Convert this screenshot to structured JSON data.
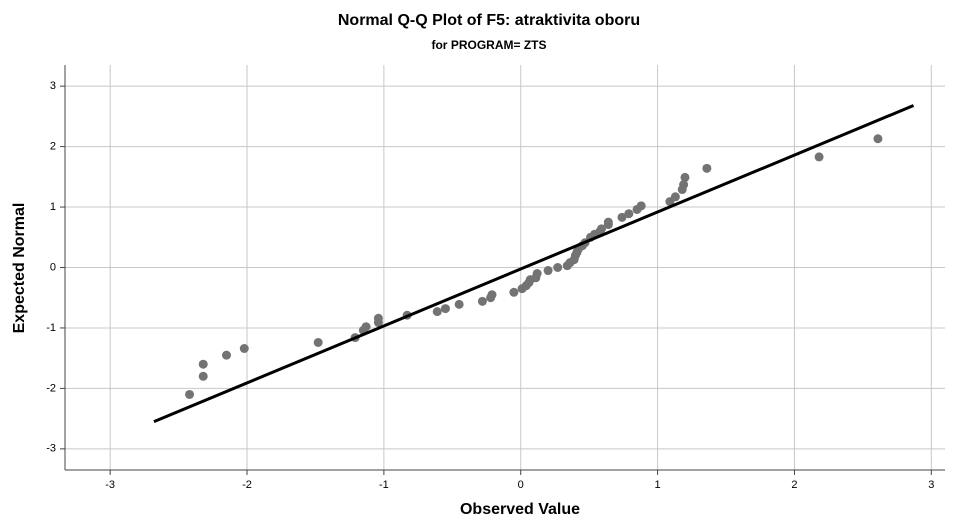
{
  "chart_data": {
    "type": "scatter",
    "title": "Normal Q-Q Plot of F5: atraktivita oboru",
    "subtitle": "for PROGRAM= ZTS",
    "x_label": "Observed Value",
    "y_label": "Expected Normal",
    "x": [
      -2.42,
      -2.32,
      -2.32,
      -2.15,
      -2.02,
      -1.48,
      -1.21,
      -1.15,
      -1.13,
      -1.04,
      -1.04,
      -0.83,
      -0.61,
      -0.55,
      -0.45,
      -0.28,
      -0.22,
      -0.21,
      -0.05,
      0.01,
      0.04,
      0.06,
      0.07,
      0.11,
      0.12,
      0.2,
      0.27,
      0.34,
      0.36,
      0.39,
      0.4,
      0.41,
      0.42,
      0.45,
      0.47,
      0.51,
      0.54,
      0.58,
      0.59,
      0.64,
      0.64,
      0.74,
      0.79,
      0.85,
      0.88,
      1.09,
      1.13,
      1.18,
      1.19,
      1.2,
      1.36,
      2.18,
      2.61
    ],
    "values": [
      -2.1,
      -1.6,
      -1.8,
      -1.45,
      -1.34,
      -1.24,
      -1.16,
      -1.04,
      -0.98,
      -0.91,
      -0.84,
      -0.79,
      -0.73,
      -0.68,
      -0.61,
      -0.56,
      -0.5,
      -0.45,
      -0.41,
      -0.35,
      -0.3,
      -0.25,
      -0.2,
      -0.17,
      -0.1,
      -0.05,
      0.0,
      0.03,
      0.08,
      0.13,
      0.2,
      0.25,
      0.3,
      0.36,
      0.41,
      0.5,
      0.55,
      0.6,
      0.64,
      0.71,
      0.75,
      0.83,
      0.89,
      0.96,
      1.02,
      1.09,
      1.17,
      1.29,
      1.37,
      1.49,
      1.64,
      1.83,
      2.13
    ],
    "color": "#737373",
    "reference_line": {
      "x": [
        -2.68,
        2.87
      ],
      "y": [
        -2.55,
        2.68
      ],
      "color": "#000000"
    },
    "xlim": [
      -3.33,
      3.1
    ],
    "ylim": [
      -3.35,
      3.35
    ],
    "xticks": [
      -3,
      -2,
      -1,
      0,
      1,
      2,
      3
    ],
    "yticks": [
      -3,
      -2,
      -1,
      0,
      1,
      2,
      3
    ],
    "grid": true
  }
}
